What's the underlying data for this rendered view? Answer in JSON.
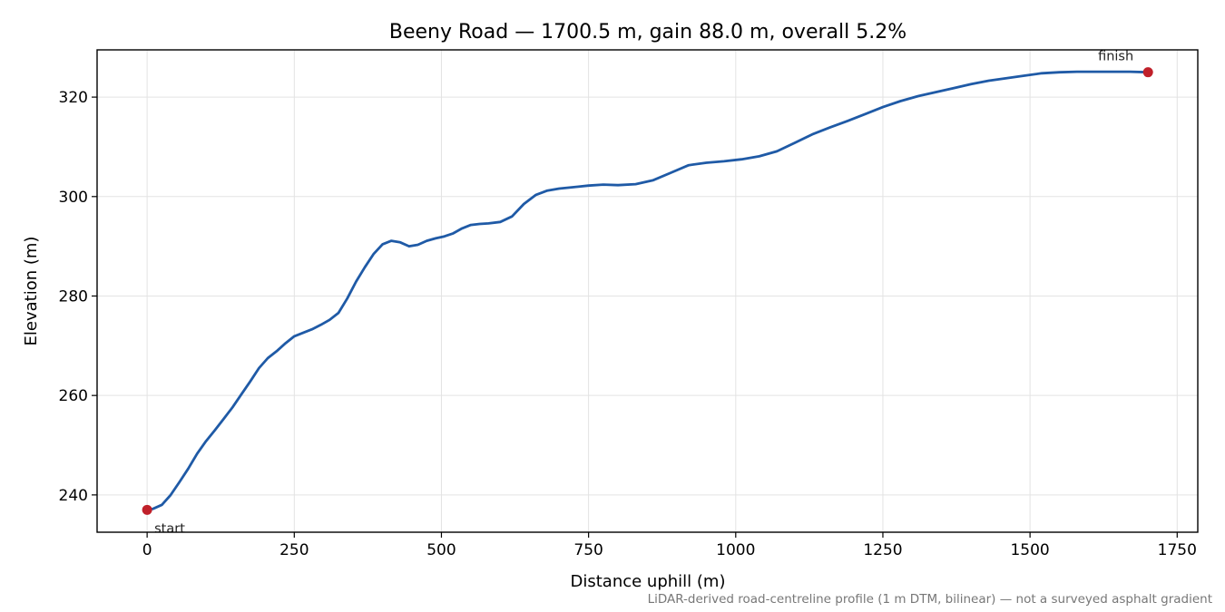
{
  "chart_data": {
    "type": "line",
    "title": "Beeny Road — 1700.5 m, gain 88.0 m, overall 5.2%",
    "xlabel": "Distance uphill (m)",
    "ylabel": "Elevation (m)",
    "xlim": [
      -85,
      1785
    ],
    "ylim": [
      232.5,
      329.5
    ],
    "xticks": [
      0,
      250,
      500,
      750,
      1000,
      1250,
      1500,
      1750
    ],
    "yticks": [
      240,
      260,
      280,
      300,
      320
    ],
    "grid": true,
    "colors": {
      "line": "#1f5aa6",
      "marker": "#c0202a",
      "grid": "#e3e3e3"
    },
    "series": [
      {
        "x": [
          0,
          10,
          25,
          40,
          55,
          70,
          85,
          100,
          115,
          130,
          145,
          160,
          175,
          190,
          205,
          220,
          235,
          250,
          265,
          280,
          295,
          310,
          325,
          340,
          355,
          370,
          385,
          400,
          415,
          430,
          445,
          460,
          475,
          490,
          505,
          520,
          535,
          550,
          565,
          580,
          600,
          620,
          640,
          660,
          680,
          700,
          725,
          750,
          775,
          800,
          830,
          860,
          890,
          920,
          950,
          980,
          1010,
          1040,
          1070,
          1100,
          1130,
          1160,
          1190,
          1220,
          1250,
          1280,
          1310,
          1340,
          1370,
          1400,
          1430,
          1460,
          1490,
          1520,
          1550,
          1580,
          1610,
          1640,
          1670,
          1700.5
        ],
        "y": [
          237.0,
          237.2,
          238.0,
          240.0,
          242.6,
          245.3,
          248.3,
          250.8,
          253.0,
          255.3,
          257.6,
          260.2,
          262.8,
          265.5,
          267.5,
          268.9,
          270.5,
          271.9,
          272.6,
          273.3,
          274.2,
          275.2,
          276.6,
          279.5,
          282.9,
          285.8,
          288.5,
          290.4,
          291.1,
          290.8,
          290.0,
          290.3,
          291.1,
          291.6,
          292.0,
          292.6,
          293.6,
          294.3,
          294.5,
          294.6,
          294.9,
          296.0,
          298.5,
          300.3,
          301.2,
          301.6,
          301.9,
          302.2,
          302.4,
          302.3,
          302.5,
          303.3,
          304.8,
          306.3,
          306.8,
          307.1,
          307.5,
          308.1,
          309.1,
          310.8,
          312.5,
          313.9,
          315.2,
          316.6,
          318.0,
          319.2,
          320.2,
          321.0,
          321.8,
          322.6,
          323.3,
          323.8,
          324.3,
          324.8,
          325.0,
          325.1,
          325.1,
          325.1,
          325.1,
          325.0
        ]
      }
    ],
    "annotations": [
      {
        "text": "start",
        "x": 0,
        "y": 237.0
      },
      {
        "text": "finish",
        "x": 1700.5,
        "y": 325.0
      }
    ],
    "footnote": "LiDAR-derived road-centreline profile (1 m DTM, bilinear) — not a surveyed asphalt gradient"
  }
}
